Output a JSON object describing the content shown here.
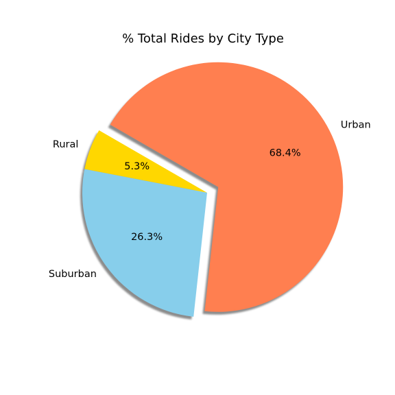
{
  "chart_data": {
    "type": "pie",
    "title": "% Total Rides by City Type",
    "slices": [
      {
        "label": "Rural",
        "value": 5.3,
        "pct_text": "5.3%",
        "color": "#ffd700",
        "explode": 0.0
      },
      {
        "label": "Suburban",
        "value": 26.3,
        "pct_text": "26.3%",
        "color": "#87ceeb",
        "explode": 0.0
      },
      {
        "label": "Urban",
        "value": 68.4,
        "pct_text": "68.4%",
        "color": "#ff7f50",
        "explode": 0.1
      }
    ],
    "start_angle_deg": 150,
    "shadow": true,
    "legend": "none"
  }
}
